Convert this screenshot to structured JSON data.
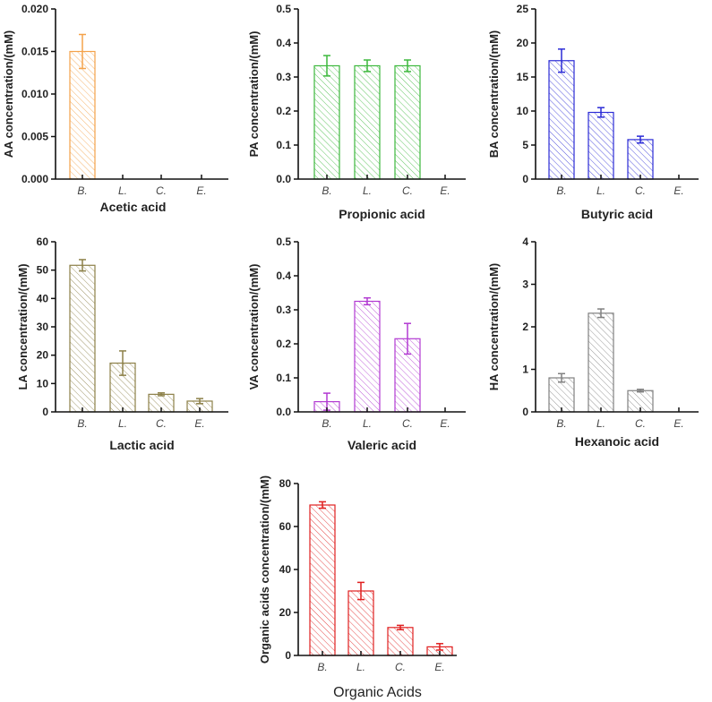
{
  "chart_data": [
    {
      "type": "bar",
      "title": "Acetic acid",
      "ylabel": "AA concentration/(mM)",
      "categories": [
        "B.",
        "L.",
        "C.",
        "E."
      ],
      "values": [
        0.015,
        0,
        0,
        0
      ],
      "errors": [
        0.002,
        0,
        0,
        0
      ],
      "ylim": [
        0,
        0.02
      ],
      "yticks": [
        "0.000",
        "0.005",
        "0.010",
        "0.015",
        "0.020"
      ],
      "color": "#f4a24a"
    },
    {
      "type": "bar",
      "title": "Propionic acid",
      "ylabel": "PA concentration/(mM)",
      "categories": [
        "B.",
        "L.",
        "C.",
        "E."
      ],
      "values": [
        0.333,
        0.333,
        0.333,
        0
      ],
      "errors": [
        0.03,
        0.017,
        0.017,
        0
      ],
      "ylim": [
        0,
        0.5
      ],
      "yticks": [
        "0.0",
        "0.1",
        "0.2",
        "0.3",
        "0.4",
        "0.5"
      ],
      "color": "#3cb83c"
    },
    {
      "type": "bar",
      "title": "Butyric acid",
      "ylabel": "BA concentration/(mM)",
      "categories": [
        "B.",
        "L.",
        "C.",
        "E."
      ],
      "values": [
        17.4,
        9.8,
        5.8,
        0
      ],
      "errors": [
        1.7,
        0.7,
        0.5,
        0
      ],
      "ylim": [
        0,
        25
      ],
      "yticks": [
        "0",
        "5",
        "10",
        "15",
        "20",
        "25"
      ],
      "color": "#2b2bd6"
    },
    {
      "type": "bar",
      "title": "Lactic acid",
      "ylabel": "LA concentration/(mM)",
      "categories": [
        "B.",
        "L.",
        "C.",
        "E."
      ],
      "values": [
        51.7,
        17.2,
        6.2,
        3.8
      ],
      "errors": [
        2.0,
        4.3,
        0.5,
        0.9
      ],
      "ylim": [
        0,
        60
      ],
      "yticks": [
        "0",
        "10",
        "20",
        "30",
        "40",
        "50",
        "60"
      ],
      "color": "#8c8048"
    },
    {
      "type": "bar",
      "title": "Valeric acid",
      "ylabel": "VA concentration/(mM)",
      "categories": [
        "B.",
        "L.",
        "C.",
        "E."
      ],
      "values": [
        0.03,
        0.325,
        0.215,
        0
      ],
      "errors": [
        0.025,
        0.01,
        0.045,
        0
      ],
      "ylim": [
        0,
        0.5
      ],
      "yticks": [
        "0.0",
        "0.1",
        "0.2",
        "0.3",
        "0.4",
        "0.5"
      ],
      "color": "#b23ad2"
    },
    {
      "type": "bar",
      "title": "Hexanoic acid",
      "ylabel": "HA concentration/(mM)",
      "categories": [
        "B.",
        "L.",
        "C.",
        "E."
      ],
      "values": [
        0.8,
        2.32,
        0.5,
        0
      ],
      "errors": [
        0.1,
        0.1,
        0.03,
        0
      ],
      "ylim": [
        0,
        4
      ],
      "yticks": [
        "0",
        "1",
        "2",
        "3",
        "4"
      ],
      "color": "#808080"
    },
    {
      "type": "bar",
      "title": "Organic Acids",
      "ylabel": "Organic acids concentration/(mM)",
      "categories": [
        "B.",
        "L.",
        "C.",
        "E."
      ],
      "values": [
        70,
        30,
        13,
        4
      ],
      "errors": [
        1.5,
        4,
        1,
        1.5
      ],
      "ylim": [
        0,
        80
      ],
      "yticks": [
        "0",
        "20",
        "40",
        "60",
        "80"
      ],
      "color": "#e02020"
    }
  ]
}
